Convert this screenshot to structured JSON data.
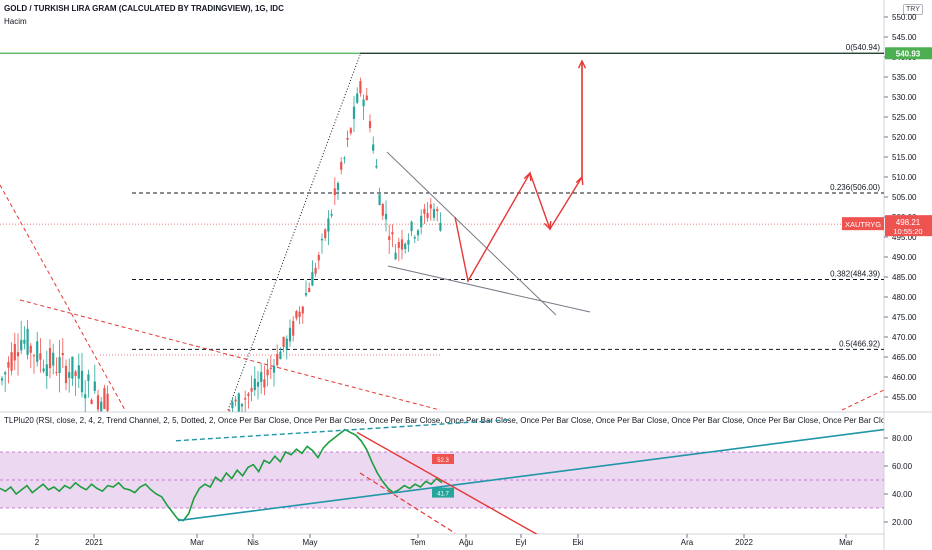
{
  "header": {
    "title": "GOLD / TURKISH LIRA GRAM (CALCULATED BY TRADINGVIEW), 1G, IDC",
    "subtitle": "Hacim",
    "currency": "TRY"
  },
  "indicator_label": "TLPlu20 (RSI, close, 2, 4, 2, Trend Channel, 2, 5, Dotted, 2, Once Per Bar Close, Once Per Bar Close, Once Per Bar Close, Once Per Bar Close, Once Per Bar Close, Once Per Bar Close, Once Per Bar Close, Once Per Bar Close, Once Per Bar Close, Once Per B",
  "price_tag": {
    "label": "XAUTRYG",
    "value": "498.21",
    "time": "10:55:20"
  },
  "top_tag": "540.93",
  "rsi_badges": {
    "upper": "52.3",
    "lower": "41.7"
  },
  "colors": {
    "up": "#26a69a",
    "down": "#ef5350",
    "fib": "#131722",
    "resistance": "#4caf50",
    "rsi_band": "#e1bee7",
    "rsi_line": "#1b9e3e",
    "trendline": "#2196a8",
    "projection": "#e53935"
  },
  "chart_data": [
    {
      "type": "candlestick",
      "y_ticks": [
        "550.00",
        "545.00",
        "540.00",
        "535.00",
        "530.00",
        "525.00",
        "520.00",
        "515.00",
        "510.00",
        "505.00",
        "500.00",
        "495.00",
        "490.00",
        "485.00",
        "480.00",
        "475.00",
        "470.00",
        "465.00",
        "460.00",
        "455.00",
        "450.00"
      ],
      "ylim": [
        450,
        550
      ],
      "fib_levels": [
        {
          "label": "0(540.94)",
          "value": 540.94
        },
        {
          "label": "0.236(506.00)",
          "value": 506.0
        },
        {
          "label": "0.382(484.39)",
          "value": 484.39
        },
        {
          "label": "0.5(466.92)",
          "value": 466.92
        }
      ],
      "resistance_level": 540.93,
      "last_price": 498.21,
      "x_ticks": [
        "2",
        "2021",
        "Mar",
        "Nis",
        "May",
        "Tem",
        "Ağu",
        "Eyl",
        "Eki",
        "Ara",
        "2022",
        "Mar"
      ],
      "key_prices": {
        "low_left": 452,
        "rally_high": 540.94,
        "recent_close": 498.21
      },
      "projected_path": [
        {
          "step": 0,
          "price": 500
        },
        {
          "step": 1,
          "price": 484
        },
        {
          "step": 2,
          "price": 511
        },
        {
          "step": 3,
          "price": 497
        },
        {
          "step": 4,
          "price": 510
        },
        {
          "step": 5,
          "price": 539
        }
      ]
    },
    {
      "type": "line",
      "name": "RSI",
      "y_ticks": [
        "80.00",
        "60.00",
        "40.00",
        "20.00"
      ],
      "ylim": [
        15,
        90
      ],
      "band": [
        30,
        70
      ],
      "mid_level": 50,
      "values": [
        44,
        42,
        45,
        40,
        43,
        46,
        41,
        44,
        47,
        43,
        45,
        42,
        46,
        44,
        48,
        45,
        43,
        47,
        44,
        42,
        46,
        45,
        48,
        44,
        43,
        41,
        45,
        47,
        43,
        40,
        38,
        32,
        27,
        22,
        21,
        26,
        37,
        44,
        47,
        45,
        52,
        49,
        55,
        51,
        57,
        53,
        59,
        61,
        56,
        64,
        62,
        67,
        63,
        70,
        68,
        72,
        69,
        74,
        71,
        66,
        73,
        77,
        80,
        83,
        86,
        84,
        82,
        78,
        72,
        63,
        55,
        49,
        44,
        41,
        43,
        46,
        44,
        47,
        45,
        49,
        47,
        51,
        48
      ]
    }
  ]
}
